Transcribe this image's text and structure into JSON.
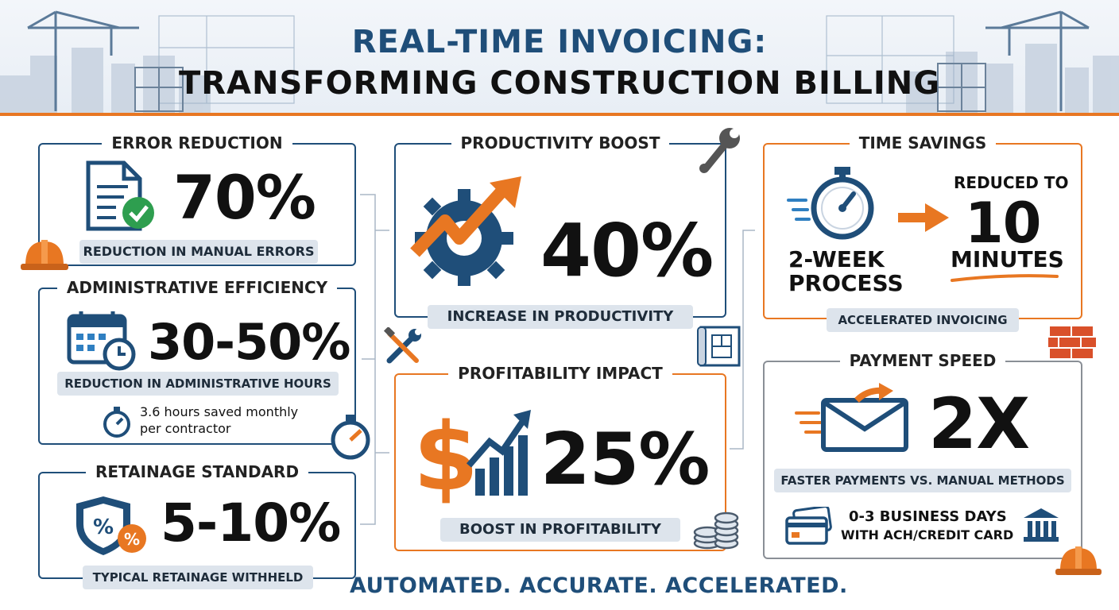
{
  "header": {
    "title_line1": "REAL-TIME INVOICING:",
    "title_line2": "TRANSFORMING CONSTRUCTION BILLING"
  },
  "error_reduction": {
    "title": "ERROR REDUCTION",
    "value": "70%",
    "caption": "REDUCTION IN MANUAL ERRORS"
  },
  "admin_efficiency": {
    "title": "ADMINISTRATIVE EFFICIENCY",
    "value": "30-50%",
    "caption": "REDUCTION IN ADMINISTRATIVE HOURS",
    "note_line1": "3.6 hours saved monthly",
    "note_line2": "per contractor"
  },
  "retainage": {
    "title": "RETAINAGE STANDARD",
    "value": "5-10%",
    "caption": "TYPICAL RETAINAGE WITHHELD"
  },
  "productivity": {
    "title": "PRODUCTIVITY BOOST",
    "value": "40%",
    "caption": "INCREASE IN PRODUCTIVITY"
  },
  "profitability": {
    "title": "PROFITABILITY IMPACT",
    "value": "25%",
    "caption": "BOOST IN PROFITABILITY"
  },
  "time_savings": {
    "title": "TIME SAVINGS",
    "from_line1": "2-WEEK",
    "from_line2": "PROCESS",
    "to_label": "REDUCED TO",
    "to_value": "10",
    "to_unit": "MINUTES",
    "caption": "ACCELERATED INVOICING"
  },
  "payment_speed": {
    "title": "PAYMENT SPEED",
    "value": "2X",
    "caption": "FASTER PAYMENTS VS. MANUAL METHODS",
    "note_line1": "0-3 BUSINESS DAYS",
    "note_line2": "WITH ACH/CREDIT CARD"
  },
  "tagline": "AUTOMATED. ACCURATE. ACCELERATED.",
  "colors": {
    "navy": "#1f4e79",
    "orange": "#e87722",
    "gray": "#8a8f96",
    "pill": "#dde4ec"
  },
  "icons": [
    "crane-icon",
    "document-check-icon",
    "hard-hat-icon",
    "calendar-clock-icon",
    "stopwatch-icon",
    "shield-percent-icon",
    "gear-arrow-icon",
    "wrench-icon",
    "tools-icon",
    "blueprint-icon",
    "dollar-chart-icon",
    "coins-icon",
    "timer-icon",
    "arrow-right-icon",
    "bricks-icon",
    "envelope-send-icon",
    "credit-card-icon",
    "bank-icon"
  ]
}
